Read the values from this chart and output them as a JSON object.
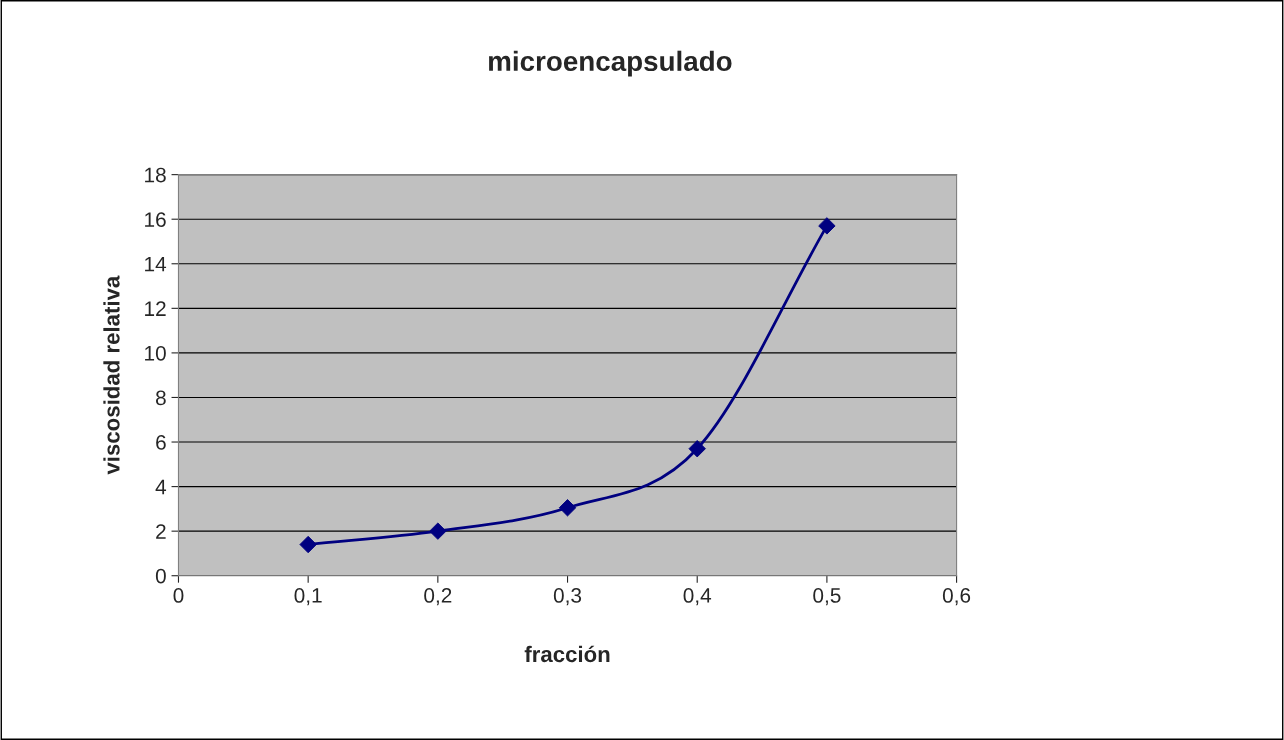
{
  "chart_data": {
    "type": "line",
    "title": "microencapsulado",
    "xlabel": "fracción",
    "ylabel": "viscosidad relativa",
    "x": [
      0.1,
      0.2,
      0.3,
      0.4,
      0.5
    ],
    "series": [
      {
        "color": "#000080",
        "values": [
          1.4,
          2.0,
          3.05,
          5.7,
          15.7
        ]
      }
    ],
    "xlim": [
      0,
      0.6
    ],
    "xticks": [
      0,
      {
        "value": 0.1,
        "label": "0,1"
      },
      {
        "value": 0.2,
        "label": "0,2"
      },
      {
        "value": 0.3,
        "label": "0,3"
      },
      {
        "value": 0.4,
        "label": "0,4"
      },
      {
        "value": 0.5,
        "label": "0,5"
      },
      {
        "value": 0.6,
        "label": "0,6"
      }
    ],
    "ylim": [
      0,
      18
    ],
    "yticks": [
      0,
      2,
      4,
      6,
      8,
      10,
      12,
      14,
      16,
      18
    ],
    "grid": "y",
    "marker": "diamond",
    "line_style": "solid"
  }
}
